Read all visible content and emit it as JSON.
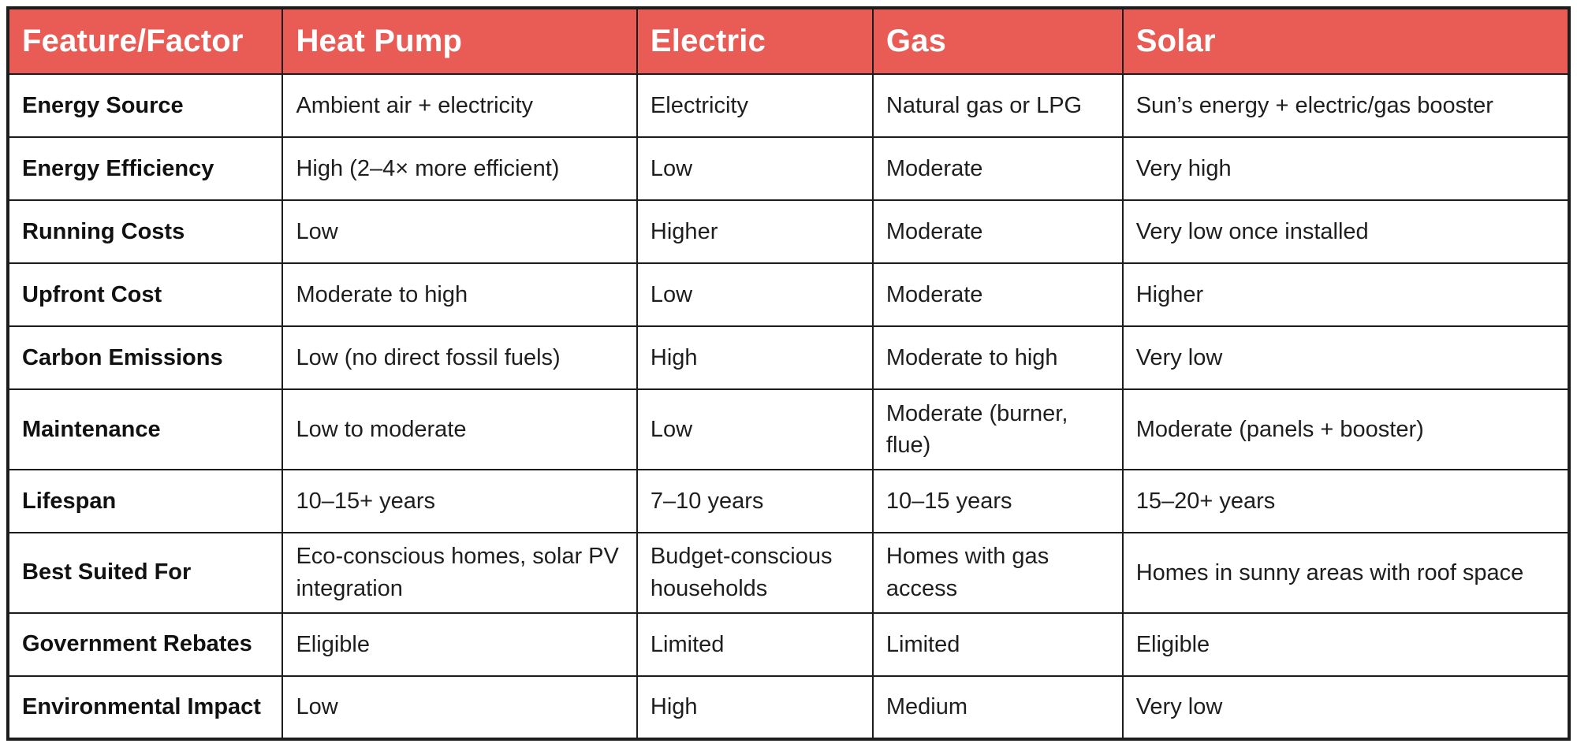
{
  "colors": {
    "header_bg": "#E95B55",
    "header_text": "#FFFFFF",
    "border": "#1C1C1C",
    "body_text": "#1E1E1E"
  },
  "chart_data": {
    "type": "table",
    "title": "",
    "columns": [
      "Feature/Factor",
      "Heat Pump",
      "Electric",
      "Gas",
      "Solar"
    ],
    "rows": [
      {
        "feature": "Energy Source",
        "values": [
          "Ambient air + electricity",
          "Electricity",
          "Natural gas or LPG",
          "Sun’s energy + electric/gas booster"
        ]
      },
      {
        "feature": "Energy Efficiency",
        "values": [
          "High (2–4× more efficient)",
          "Low",
          "Moderate",
          "Very high"
        ]
      },
      {
        "feature": "Running Costs",
        "values": [
          "Low",
          "Higher",
          "Moderate",
          "Very low once installed"
        ]
      },
      {
        "feature": "Upfront Cost",
        "values": [
          "Moderate to high",
          "Low",
          "Moderate",
          "Higher"
        ]
      },
      {
        "feature": "Carbon Emissions",
        "values": [
          "Low (no direct fossil fuels)",
          "High",
          "Moderate to high",
          "Very low"
        ]
      },
      {
        "feature": "Maintenance",
        "values": [
          "Low to moderate",
          "Low",
          "Moderate (burner, flue)",
          "Moderate (panels + booster)"
        ]
      },
      {
        "feature": "Lifespan",
        "values": [
          "10–15+ years",
          "7–10 years",
          "10–15 years",
          "15–20+ years"
        ]
      },
      {
        "feature": "Best Suited For",
        "values": [
          "Eco-conscious homes, solar PV integration",
          "Budget-conscious households",
          "Homes with gas access",
          "Homes in sunny areas with roof space"
        ]
      },
      {
        "feature": "Government Rebates",
        "values": [
          "Eligible",
          "Limited",
          "Limited",
          "Eligible"
        ]
      },
      {
        "feature": "Environmental Impact",
        "values": [
          "Low",
          "High",
          "Medium",
          "Very low"
        ]
      }
    ]
  }
}
